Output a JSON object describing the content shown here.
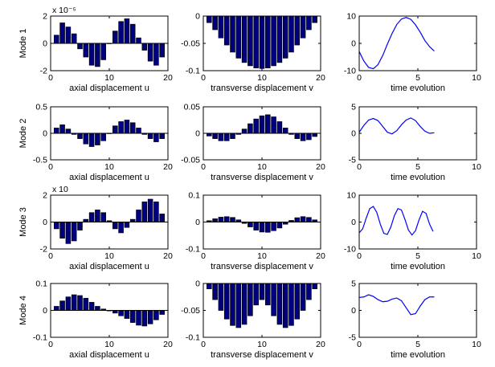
{
  "figure": {
    "background": "#ffffff",
    "bar_color": "#00007f",
    "line_color": "#0000ff",
    "axis_color": "#000000"
  },
  "chart_data": [
    {
      "id": "m1-axial",
      "row": 0,
      "col": 0,
      "type": "bar",
      "row_label": "Mode 1",
      "xlabel": "axial displacement u",
      "exponent_label": "x 10⁻⁵",
      "xlim": [
        0,
        20
      ],
      "ylim": [
        -2,
        2
      ],
      "xticks": [
        0,
        10,
        20
      ],
      "yticks": [
        -2,
        0,
        2
      ],
      "x": [
        1,
        2,
        3,
        4,
        5,
        6,
        7,
        8,
        9,
        10,
        11,
        12,
        13,
        14,
        15,
        16,
        17,
        18,
        19
      ],
      "values": [
        0.6,
        1.5,
        1.2,
        0.7,
        -0.4,
        -1.0,
        -1.6,
        -1.7,
        -1.2,
        0.0,
        0.9,
        1.6,
        1.8,
        1.4,
        0.4,
        -0.5,
        -1.3,
        -1.6,
        -1.0
      ]
    },
    {
      "id": "m1-transverse",
      "row": 0,
      "col": 1,
      "type": "bar",
      "xlabel": "transverse displacement v",
      "xlim": [
        0,
        20
      ],
      "ylim": [
        -0.1,
        0
      ],
      "xticks": [
        0,
        10,
        20
      ],
      "yticks": [
        -0.1,
        -0.05,
        0
      ],
      "ytick_labels": [
        "-0.1",
        "-0.05",
        "0"
      ],
      "x": [
        1,
        2,
        3,
        4,
        5,
        6,
        7,
        8,
        9,
        10,
        11,
        12,
        13,
        14,
        15,
        16,
        17,
        18,
        19
      ],
      "values": [
        -0.012,
        -0.025,
        -0.04,
        -0.053,
        -0.066,
        -0.077,
        -0.085,
        -0.091,
        -0.095,
        -0.096,
        -0.095,
        -0.091,
        -0.085,
        -0.077,
        -0.066,
        -0.053,
        -0.04,
        -0.025,
        -0.012
      ]
    },
    {
      "id": "m1-time",
      "row": 0,
      "col": 2,
      "type": "line",
      "xlabel": "time evolution",
      "xlim": [
        0,
        10
      ],
      "ylim": [
        -10,
        10
      ],
      "xticks": [
        0,
        5,
        10
      ],
      "yticks": [
        -10,
        0,
        10
      ],
      "x": [
        0,
        0.4,
        0.8,
        1.2,
        1.6,
        2.0,
        2.4,
        2.8,
        3.2,
        3.6,
        4.0,
        4.4,
        4.8,
        5.2,
        5.6,
        6.0,
        6.4
      ],
      "values": [
        -3.0,
        -6.5,
        -8.8,
        -9.3,
        -7.8,
        -4.5,
        -0.3,
        3.6,
        6.9,
        8.9,
        9.5,
        8.8,
        6.8,
        4.1,
        1.0,
        -1.2,
        -2.8
      ]
    },
    {
      "id": "m2-axial",
      "row": 1,
      "col": 0,
      "type": "bar",
      "row_label": "Mode 2",
      "xlabel": "axial displacement u",
      "xlim": [
        0,
        20
      ],
      "ylim": [
        -0.5,
        0.5
      ],
      "xticks": [
        0,
        10,
        20
      ],
      "yticks": [
        -0.5,
        0,
        0.5
      ],
      "x": [
        1,
        2,
        3,
        4,
        5,
        6,
        7,
        8,
        9,
        10,
        11,
        12,
        13,
        14,
        15,
        16,
        17,
        18,
        19
      ],
      "values": [
        0.1,
        0.16,
        0.08,
        -0.02,
        -0.1,
        -0.2,
        -0.25,
        -0.22,
        -0.14,
        0.0,
        0.14,
        0.22,
        0.25,
        0.2,
        0.1,
        -0.02,
        -0.1,
        -0.16,
        -0.1
      ]
    },
    {
      "id": "m2-transverse",
      "row": 1,
      "col": 1,
      "type": "bar",
      "xlabel": "transverse displacement v",
      "xlim": [
        0,
        20
      ],
      "ylim": [
        -0.05,
        0.05
      ],
      "xticks": [
        0,
        10,
        20
      ],
      "yticks": [
        -0.05,
        0,
        0.05
      ],
      "ytick_labels": [
        "-0.05",
        "0",
        "0.05"
      ],
      "x": [
        1,
        2,
        3,
        4,
        5,
        6,
        7,
        8,
        9,
        10,
        11,
        12,
        13,
        14,
        15,
        16,
        17,
        18,
        19
      ],
      "values": [
        -0.005,
        -0.01,
        -0.014,
        -0.014,
        -0.01,
        -0.002,
        0.008,
        0.018,
        0.027,
        0.033,
        0.035,
        0.031,
        0.022,
        0.01,
        -0.002,
        -0.01,
        -0.014,
        -0.012,
        -0.006
      ]
    },
    {
      "id": "m2-time",
      "row": 1,
      "col": 2,
      "type": "line",
      "xlabel": "time evolution",
      "xlim": [
        0,
        10
      ],
      "ylim": [
        -5,
        5
      ],
      "xticks": [
        0,
        5,
        10
      ],
      "yticks": [
        -5,
        0,
        5
      ],
      "x": [
        0,
        0.4,
        0.8,
        1.2,
        1.6,
        2.0,
        2.4,
        2.8,
        3.2,
        3.6,
        4.0,
        4.4,
        4.8,
        5.2,
        5.6,
        6.0,
        6.4
      ],
      "values": [
        0.2,
        1.5,
        2.5,
        2.8,
        2.4,
        1.3,
        0.2,
        -0.1,
        0.5,
        1.6,
        2.5,
        2.9,
        2.4,
        1.3,
        0.4,
        0.0,
        0.1
      ]
    },
    {
      "id": "m3-axial",
      "row": 2,
      "col": 0,
      "type": "bar",
      "row_label": "Mode 3",
      "xlabel": "axial displacement u",
      "exponent_label": "x 10",
      "xlim": [
        0,
        20
      ],
      "ylim": [
        -2,
        2
      ],
      "xticks": [
        0,
        10,
        20
      ],
      "yticks": [
        -2,
        0,
        2
      ],
      "x": [
        1,
        2,
        3,
        4,
        5,
        6,
        7,
        8,
        9,
        10,
        11,
        12,
        13,
        14,
        15,
        16,
        17,
        18,
        19
      ],
      "values": [
        -0.5,
        -1.2,
        -1.6,
        -1.4,
        -0.6,
        0.2,
        0.7,
        0.9,
        0.7,
        0.1,
        -0.5,
        -0.8,
        -0.4,
        0.2,
        0.9,
        1.5,
        1.7,
        1.5,
        0.6
      ]
    },
    {
      "id": "m3-transverse",
      "row": 2,
      "col": 1,
      "type": "bar",
      "xlabel": "transverse displacement v",
      "xlim": [
        0,
        20
      ],
      "ylim": [
        -0.1,
        0.1
      ],
      "xticks": [
        0,
        10,
        20
      ],
      "yticks": [
        -0.1,
        0,
        0.1
      ],
      "ytick_labels": [
        "-0.1",
        "0",
        "0.1"
      ],
      "x": [
        1,
        2,
        3,
        4,
        5,
        6,
        7,
        8,
        9,
        10,
        11,
        12,
        13,
        14,
        15,
        16,
        17,
        18,
        19
      ],
      "values": [
        0.005,
        0.012,
        0.018,
        0.02,
        0.017,
        0.008,
        -0.005,
        -0.018,
        -0.03,
        -0.037,
        -0.038,
        -0.032,
        -0.022,
        -0.008,
        0.006,
        0.016,
        0.02,
        0.017,
        0.008
      ]
    },
    {
      "id": "m3-time",
      "row": 2,
      "col": 2,
      "type": "line",
      "xlabel": "time evolution",
      "xlim": [
        0,
        10
      ],
      "ylim": [
        -10,
        10
      ],
      "xticks": [
        0,
        5,
        10
      ],
      "yticks": [
        -10,
        0,
        10
      ],
      "x": [
        0,
        0.3,
        0.6,
        0.9,
        1.2,
        1.5,
        1.8,
        2.1,
        2.4,
        2.7,
        3.0,
        3.3,
        3.6,
        3.9,
        4.2,
        4.5,
        4.8,
        5.1,
        5.4,
        5.7,
        6.0,
        6.3
      ],
      "values": [
        -4.0,
        -2.5,
        1.5,
        5.0,
        5.8,
        3.6,
        -0.8,
        -4.2,
        -4.6,
        -1.8,
        2.4,
        5.0,
        4.5,
        1.0,
        -3.0,
        -4.8,
        -3.2,
        0.8,
        4.0,
        3.2,
        -0.8,
        -3.5
      ]
    },
    {
      "id": "m4-axial",
      "row": 3,
      "col": 0,
      "type": "bar",
      "row_label": "Mode 4",
      "xlabel": "axial displacement u",
      "xlim": [
        0,
        20
      ],
      "ylim": [
        -0.1,
        0.1
      ],
      "xticks": [
        0,
        10,
        20
      ],
      "yticks": [
        -0.1,
        0,
        0.1
      ],
      "ytick_labels": [
        "-0.1",
        "0",
        "0.1"
      ],
      "x": [
        1,
        2,
        3,
        4,
        5,
        6,
        7,
        8,
        9,
        10,
        11,
        12,
        13,
        14,
        15,
        16,
        17,
        18,
        19
      ],
      "values": [
        0.015,
        0.035,
        0.05,
        0.058,
        0.055,
        0.045,
        0.03,
        0.015,
        0.005,
        -0.002,
        -0.01,
        -0.02,
        -0.03,
        -0.045,
        -0.055,
        -0.058,
        -0.05,
        -0.035,
        -0.015
      ]
    },
    {
      "id": "m4-transverse",
      "row": 3,
      "col": 1,
      "type": "bar",
      "xlabel": "transverse displacement v",
      "xlim": [
        0,
        20
      ],
      "ylim": [
        -0.1,
        0
      ],
      "xticks": [
        0,
        10,
        20
      ],
      "yticks": [
        -0.1,
        -0.05,
        0
      ],
      "ytick_labels": [
        "-0.1",
        "-0.05",
        "0"
      ],
      "x": [
        1,
        2,
        3,
        4,
        5,
        6,
        7,
        8,
        9,
        10,
        11,
        12,
        13,
        14,
        15,
        16,
        17,
        18,
        19
      ],
      "values": [
        -0.01,
        -0.03,
        -0.05,
        -0.066,
        -0.078,
        -0.082,
        -0.076,
        -0.06,
        -0.04,
        -0.03,
        -0.04,
        -0.06,
        -0.076,
        -0.082,
        -0.078,
        -0.066,
        -0.05,
        -0.03,
        -0.01
      ]
    },
    {
      "id": "m4-time",
      "row": 3,
      "col": 2,
      "type": "line",
      "xlabel": "time evolution",
      "xlim": [
        0,
        10
      ],
      "ylim": [
        -5,
        5
      ],
      "xticks": [
        0,
        5,
        10
      ],
      "yticks": [
        -5,
        0,
        5
      ],
      "x": [
        0,
        0.4,
        0.8,
        1.2,
        1.6,
        2.0,
        2.4,
        2.8,
        3.2,
        3.6,
        4.0,
        4.4,
        4.8,
        5.2,
        5.6,
        6.0,
        6.4
      ],
      "values": [
        2.4,
        2.5,
        2.9,
        2.6,
        2.0,
        1.6,
        1.7,
        2.1,
        2.3,
        1.8,
        0.5,
        -0.8,
        -0.6,
        0.8,
        2.0,
        2.5,
        2.5
      ]
    }
  ]
}
